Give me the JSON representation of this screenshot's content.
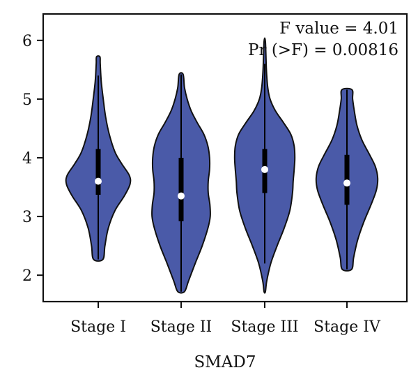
{
  "chart_data": {
    "type": "violin",
    "title": "",
    "xlabel": "SMAD7",
    "ylabel": "",
    "ylim": [
      1.55,
      6.45
    ],
    "yticks": [
      2,
      3,
      4,
      5,
      6
    ],
    "grid": false,
    "annotations": [
      "F value = 4.01",
      "Pr (>F) = 0.00816"
    ],
    "colors": {
      "violin_fill": "#4a5aa8",
      "outline": "#111111",
      "median_dot": "#ffffff"
    },
    "categories": [
      "Stage I",
      "Stage II",
      "Stage III",
      "Stage IV"
    ],
    "violins": [
      {
        "category": "Stage I",
        "min": 2.27,
        "max": 5.72,
        "whisker_low": 2.27,
        "whisker_high": 5.4,
        "q1": 3.37,
        "q3": 4.15,
        "median": 3.6,
        "profile": [
          [
            2.27,
            0.14
          ],
          [
            2.5,
            0.2
          ],
          [
            2.8,
            0.3
          ],
          [
            3.1,
            0.5
          ],
          [
            3.35,
            0.78
          ],
          [
            3.55,
            0.95
          ],
          [
            3.7,
            0.93
          ],
          [
            3.9,
            0.7
          ],
          [
            4.1,
            0.5
          ],
          [
            4.4,
            0.33
          ],
          [
            4.7,
            0.22
          ],
          [
            5.0,
            0.15
          ],
          [
            5.3,
            0.09
          ],
          [
            5.6,
            0.06
          ],
          [
            5.72,
            0.05
          ]
        ]
      },
      {
        "category": "Stage II",
        "min": 1.72,
        "max": 5.42,
        "whisker_low": 1.72,
        "whisker_high": 5.42,
        "q1": 2.92,
        "q3": 4.0,
        "median": 3.35,
        "profile": [
          [
            1.72,
            0.1
          ],
          [
            1.9,
            0.22
          ],
          [
            2.2,
            0.42
          ],
          [
            2.5,
            0.63
          ],
          [
            2.8,
            0.8
          ],
          [
            3.0,
            0.87
          ],
          [
            3.2,
            0.86
          ],
          [
            3.4,
            0.81
          ],
          [
            3.6,
            0.81
          ],
          [
            3.8,
            0.85
          ],
          [
            4.0,
            0.85
          ],
          [
            4.2,
            0.8
          ],
          [
            4.4,
            0.68
          ],
          [
            4.6,
            0.48
          ],
          [
            4.8,
            0.3
          ],
          [
            5.0,
            0.18
          ],
          [
            5.2,
            0.1
          ],
          [
            5.42,
            0.06
          ]
        ]
      },
      {
        "category": "Stage III",
        "min": 1.72,
        "max": 5.98,
        "whisker_low": 2.2,
        "whisker_high": 5.6,
        "q1": 3.4,
        "q3": 4.15,
        "median": 3.8,
        "profile": [
          [
            1.72,
            0.02
          ],
          [
            1.9,
            0.06
          ],
          [
            2.2,
            0.18
          ],
          [
            2.5,
            0.37
          ],
          [
            2.8,
            0.58
          ],
          [
            3.1,
            0.75
          ],
          [
            3.4,
            0.83
          ],
          [
            3.6,
            0.85
          ],
          [
            3.8,
            0.88
          ],
          [
            4.0,
            0.9
          ],
          [
            4.2,
            0.88
          ],
          [
            4.4,
            0.78
          ],
          [
            4.6,
            0.56
          ],
          [
            4.8,
            0.32
          ],
          [
            5.0,
            0.16
          ],
          [
            5.2,
            0.09
          ],
          [
            5.5,
            0.05
          ],
          [
            5.98,
            0.02
          ]
        ]
      },
      {
        "category": "Stage IV",
        "min": 2.1,
        "max": 5.16,
        "whisker_low": 2.1,
        "whisker_high": 5.16,
        "q1": 3.2,
        "q3": 4.05,
        "median": 3.57,
        "profile": [
          [
            2.1,
            0.14
          ],
          [
            2.3,
            0.2
          ],
          [
            2.6,
            0.32
          ],
          [
            2.9,
            0.5
          ],
          [
            3.2,
            0.72
          ],
          [
            3.45,
            0.88
          ],
          [
            3.65,
            0.92
          ],
          [
            3.85,
            0.85
          ],
          [
            4.05,
            0.68
          ],
          [
            4.3,
            0.45
          ],
          [
            4.55,
            0.3
          ],
          [
            4.8,
            0.22
          ],
          [
            5.0,
            0.17
          ],
          [
            5.16,
            0.15
          ]
        ]
      }
    ]
  }
}
